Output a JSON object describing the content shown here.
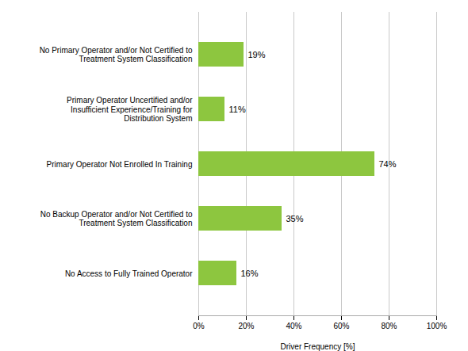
{
  "chart_data": {
    "type": "bar",
    "orientation": "horizontal",
    "categories": [
      "No Access to Fully Trained Operator",
      "No Backup Operator and/or Not Certified to\nTreatment System Classification",
      "Primary Operator Not Enrolled In Training",
      "Primary Operator Uncertified and/or\nInsufficient Experience/Training for\nDistribution System",
      "No Primary Operator and/or Not Certified to\nTreatment System Classification"
    ],
    "values": [
      16,
      35,
      74,
      11,
      19
    ],
    "value_labels": [
      "16%",
      "35%",
      "74%",
      "11%",
      "19%"
    ],
    "data_labels": true,
    "color": "#8dc63f",
    "xlabel": "Driver Frequency [%]",
    "xlim": [
      0,
      100
    ],
    "xticks": [
      {
        "value": 0,
        "label": "0%"
      },
      {
        "value": 20,
        "label": "20%"
      },
      {
        "value": 40,
        "label": "40%"
      },
      {
        "value": 60,
        "label": "60%"
      },
      {
        "value": 80,
        "label": "80%"
      },
      {
        "value": 100,
        "label": "100%"
      }
    ],
    "grid": true
  }
}
